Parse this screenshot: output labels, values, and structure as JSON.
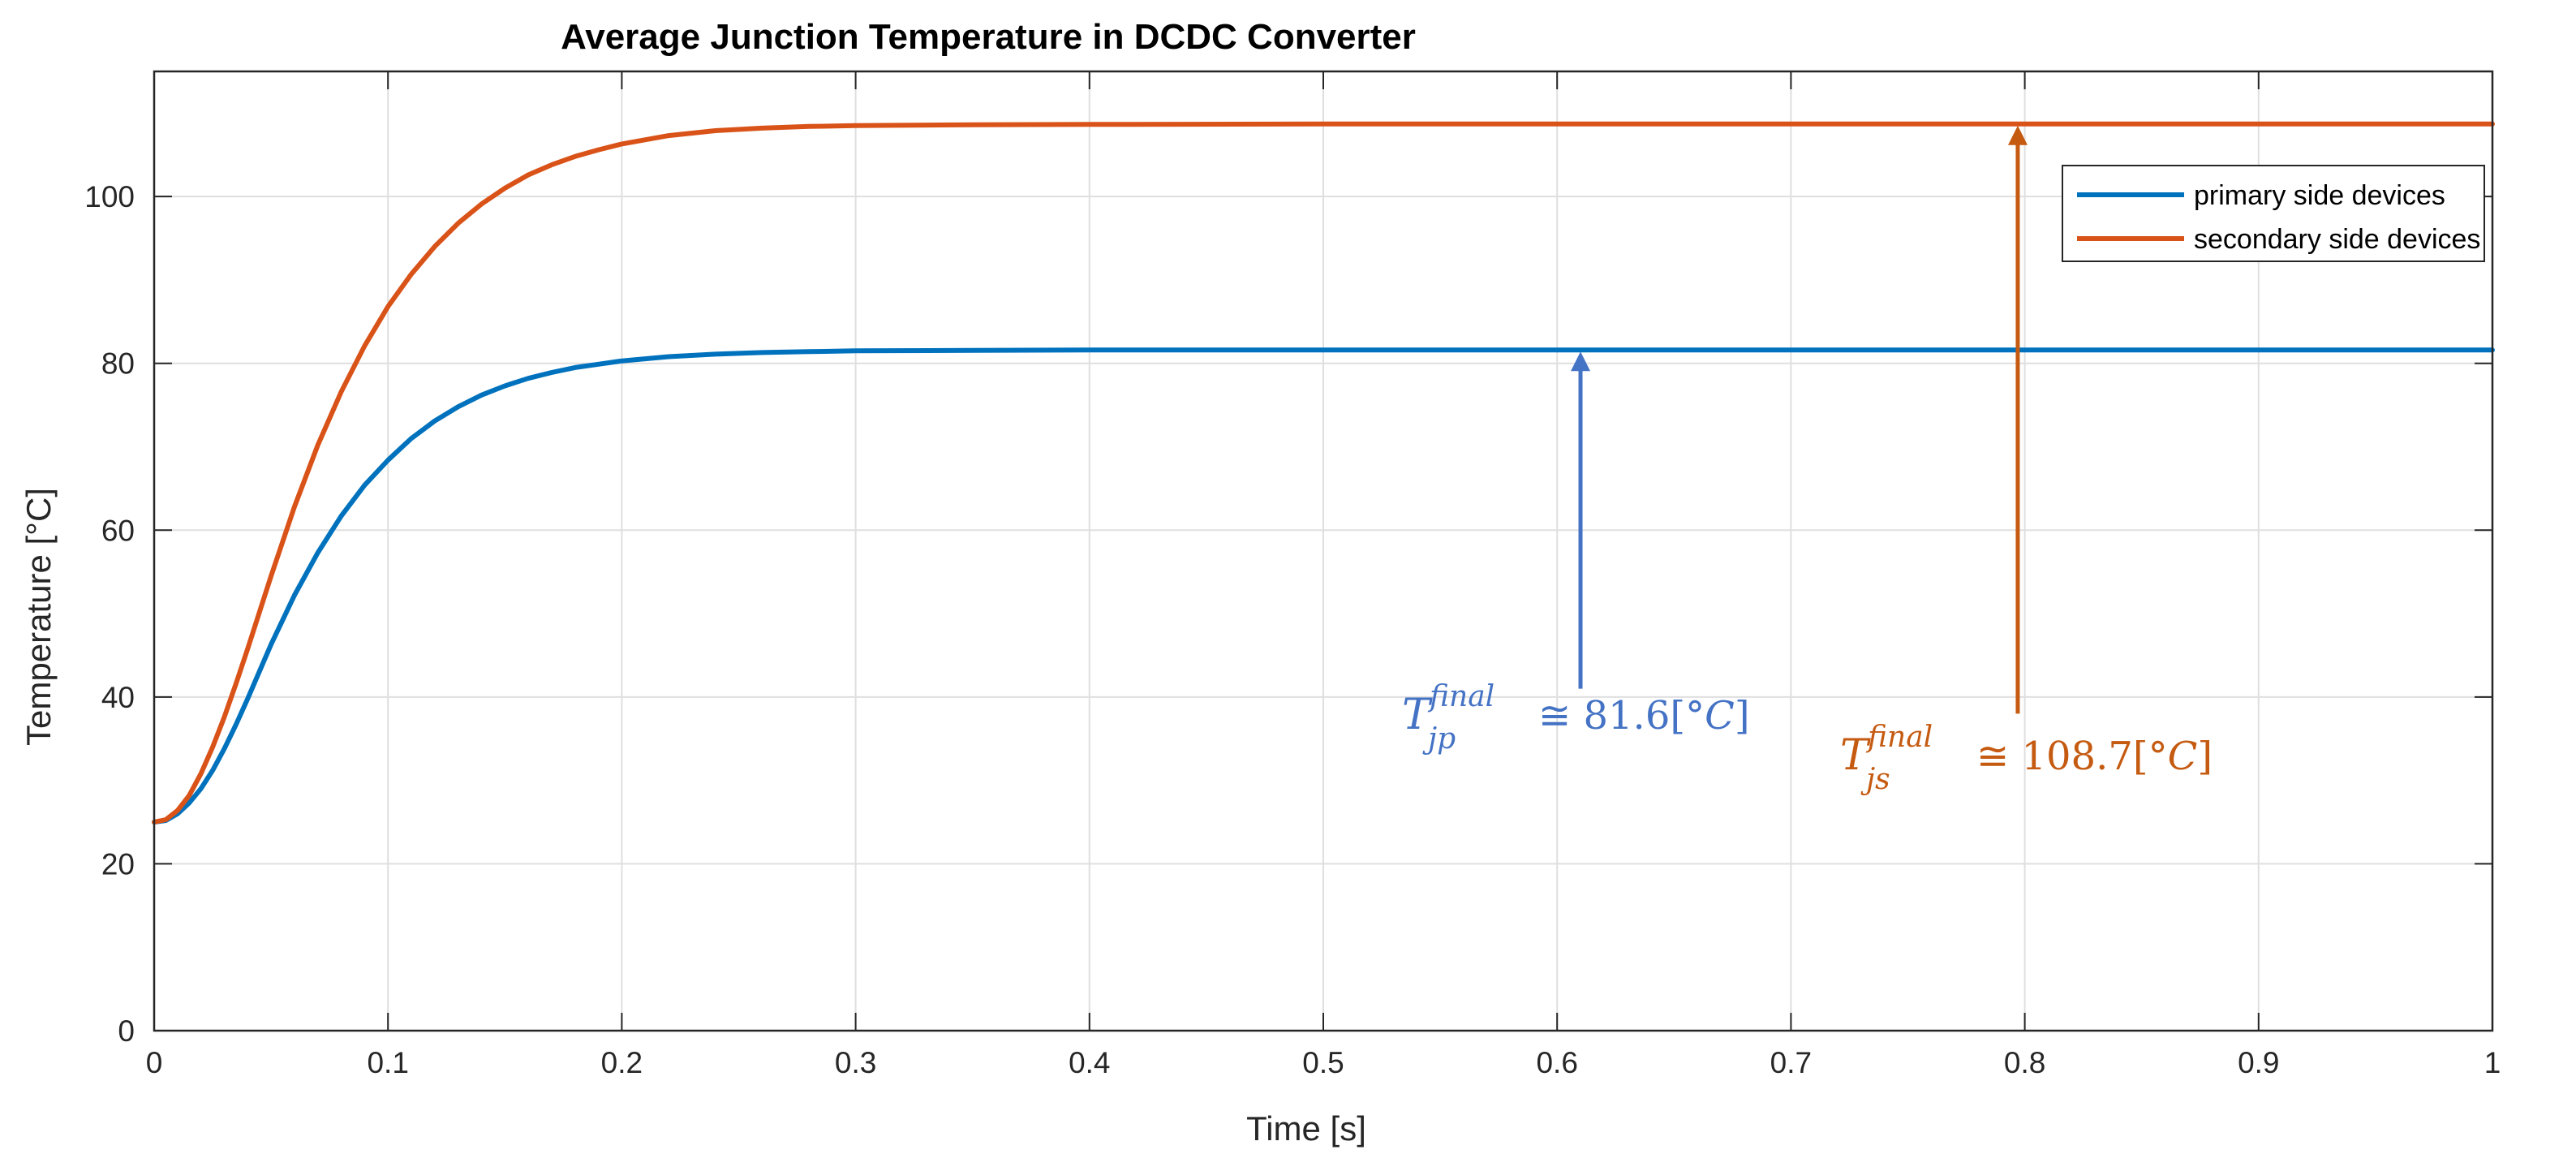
{
  "chart_data": {
    "type": "line",
    "title": "Average Junction Temperature in DCDC Converter",
    "xlabel": "Time [s]",
    "ylabel": "Temperature [°C]",
    "xlim": [
      0,
      1
    ],
    "ylim": [
      0,
      115
    ],
    "grid": true,
    "x_ticks": [
      0,
      0.1,
      0.2,
      0.3,
      0.4,
      0.5,
      0.6,
      0.7,
      0.8,
      0.9,
      1
    ],
    "x_tick_labels": [
      "0",
      "0.1",
      "0.2",
      "0.3",
      "0.4",
      "0.5",
      "0.6",
      "0.7",
      "0.8",
      "0.9",
      "1"
    ],
    "y_ticks": [
      0,
      20,
      40,
      60,
      80,
      100
    ],
    "y_tick_labels": [
      "0",
      "20",
      "40",
      "60",
      "80",
      "100"
    ],
    "legend": {
      "location": "top-right"
    },
    "series": [
      {
        "name": "primary side devices",
        "color": "#0072bd",
        "x": [
          0,
          0.005,
          0.01,
          0.015,
          0.02,
          0.025,
          0.03,
          0.035,
          0.04,
          0.05,
          0.06,
          0.07,
          0.08,
          0.09,
          0.1,
          0.11,
          0.12,
          0.13,
          0.14,
          0.15,
          0.16,
          0.17,
          0.18,
          0.19,
          0.2,
          0.22,
          0.24,
          0.26,
          0.28,
          0.3,
          0.35,
          0.4,
          0.5,
          0.6,
          0.7,
          0.8,
          0.9,
          1
        ],
        "values": [
          25,
          25.2,
          26,
          27.3,
          29,
          31.2,
          33.8,
          36.7,
          39.8,
          46.3,
          52.2,
          57.3,
          61.7,
          65.4,
          68.4,
          71,
          73.1,
          74.8,
          76.2,
          77.3,
          78.2,
          78.9,
          79.5,
          79.9,
          80.3,
          80.8,
          81.1,
          81.3,
          81.4,
          81.5,
          81.55,
          81.6,
          81.6,
          81.6,
          81.6,
          81.6,
          81.6,
          81.6
        ]
      },
      {
        "name": "secondary side devices",
        "color": "#d95319",
        "x": [
          0,
          0.005,
          0.01,
          0.015,
          0.02,
          0.025,
          0.03,
          0.035,
          0.04,
          0.05,
          0.06,
          0.07,
          0.08,
          0.09,
          0.1,
          0.11,
          0.12,
          0.13,
          0.14,
          0.15,
          0.16,
          0.17,
          0.18,
          0.19,
          0.2,
          0.22,
          0.24,
          0.26,
          0.28,
          0.3,
          0.35,
          0.4,
          0.5,
          0.6,
          0.7,
          0.8,
          0.9,
          1
        ],
        "values": [
          25,
          25.3,
          26.4,
          28.2,
          30.8,
          34,
          37.6,
          41.6,
          45.8,
          54.5,
          62.8,
          70.2,
          76.6,
          82.1,
          86.8,
          90.7,
          94,
          96.8,
          99.1,
          101,
          102.6,
          103.8,
          104.8,
          105.6,
          106.3,
          107.3,
          107.9,
          108.2,
          108.4,
          108.5,
          108.6,
          108.65,
          108.7,
          108.7,
          108.7,
          108.7,
          108.7,
          108.7
        ]
      }
    ],
    "annotations": [
      {
        "id": "primary",
        "color": "#4472c4",
        "symbol": "T",
        "superscript": "final",
        "subscript": "jp",
        "relation": "≅",
        "value_text": "81.6[°",
        "unit_symbol": "C",
        "close": "]",
        "arrow_x": 0.61,
        "arrow_from_y": 41,
        "arrow_to_y": 81.6
      },
      {
        "id": "secondary",
        "color": "#c55a11",
        "symbol": "T",
        "superscript": "final",
        "subscript": "js",
        "relation": "≅",
        "value_text": "108.7[°",
        "unit_symbol": "C",
        "close": "]",
        "arrow_x": 0.797,
        "arrow_from_y": 38,
        "arrow_to_y": 108.7
      }
    ]
  }
}
